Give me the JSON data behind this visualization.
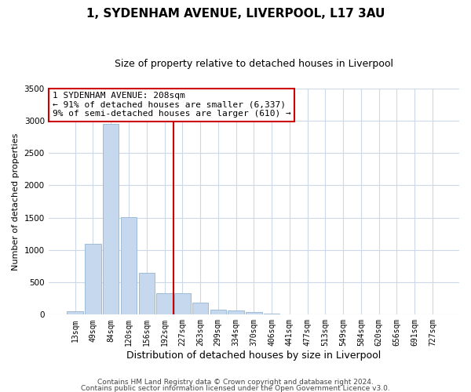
{
  "title": "1, SYDENHAM AVENUE, LIVERPOOL, L17 3AU",
  "subtitle": "Size of property relative to detached houses in Liverpool",
  "xlabel": "Distribution of detached houses by size in Liverpool",
  "ylabel": "Number of detached properties",
  "bar_labels": [
    "13sqm",
    "49sqm",
    "84sqm",
    "120sqm",
    "156sqm",
    "192sqm",
    "227sqm",
    "263sqm",
    "299sqm",
    "334sqm",
    "370sqm",
    "406sqm",
    "441sqm",
    "477sqm",
    "513sqm",
    "549sqm",
    "584sqm",
    "620sqm",
    "656sqm",
    "691sqm",
    "727sqm"
  ],
  "bar_values": [
    50,
    1100,
    2950,
    1510,
    650,
    330,
    330,
    180,
    80,
    60,
    40,
    20,
    10,
    5,
    0,
    0,
    0,
    0,
    0,
    0,
    0
  ],
  "bar_color": "#c5d8ed",
  "bar_edge_color": "#9dbcd6",
  "property_line_x": 5.5,
  "annotation_line1": "1 SYDENHAM AVENUE: 208sqm",
  "annotation_line2": "← 91% of detached houses are smaller (6,337)",
  "annotation_line3": "9% of semi-detached houses are larger (610) →",
  "vline_color": "#cc0000",
  "annotation_box_color": "#cc0000",
  "ylim": [
    0,
    3500
  ],
  "footer1": "Contains HM Land Registry data © Crown copyright and database right 2024.",
  "footer2": "Contains public sector information licensed under the Open Government Licence v3.0.",
  "background_color": "#ffffff",
  "grid_color": "#cdd8e8",
  "title_fontsize": 11,
  "subtitle_fontsize": 9,
  "ylabel_fontsize": 8,
  "xlabel_fontsize": 9,
  "tick_fontsize": 7,
  "annot_fontsize": 8,
  "footer_fontsize": 6.5
}
